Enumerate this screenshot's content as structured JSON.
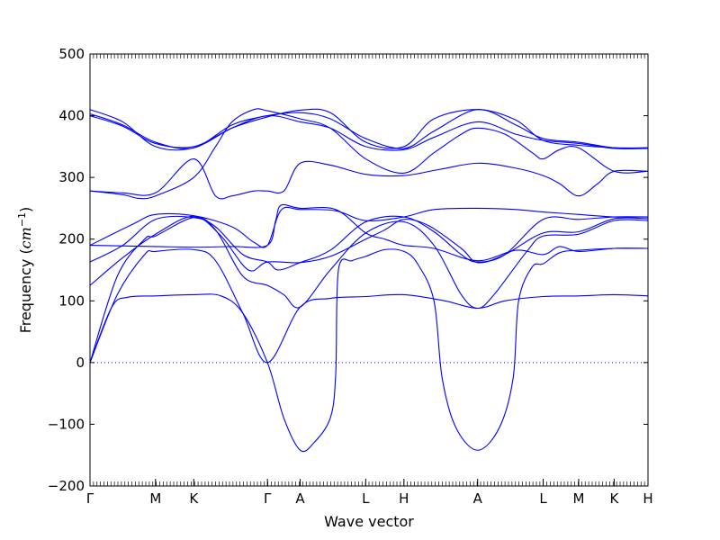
{
  "chart_data": {
    "type": "line",
    "title": "",
    "xlabel": "Wave vector",
    "ylabel_prefix": "Frequency (",
    "ylabel_unit": "cm",
    "ylabel_exp": "−1",
    "ylabel_suffix": ")",
    "ylim": [
      -200,
      500
    ],
    "xlim": [
      0,
      10.22
    ],
    "yticks": [
      -200,
      -100,
      0,
      100,
      200,
      300,
      400,
      500
    ],
    "ytick_labels": [
      "−200",
      "−100",
      "0",
      "100",
      "200",
      "300",
      "400",
      "500"
    ],
    "high_symmetry_points": [
      {
        "label": "Γ",
        "x": 0.0
      },
      {
        "label": "M",
        "x": 1.2
      },
      {
        "label": "K",
        "x": 1.9
      },
      {
        "label": "Γ",
        "x": 3.25
      },
      {
        "label": "A",
        "x": 3.85
      },
      {
        "label": "L",
        "x": 5.05
      },
      {
        "label": "H",
        "x": 5.75
      },
      {
        "label": "A",
        "x": 7.1
      },
      {
        "label": "L",
        "x": 8.3
      },
      {
        "label": "M",
        "x": 8.95
      },
      {
        "label": "K",
        "x": 9.6
      },
      {
        "label": "H",
        "x": 10.22
      }
    ],
    "zero_line": {
      "y": 0,
      "style": "dotted"
    },
    "line_color": "#0000ff",
    "series": [
      {
        "name": "band 1",
        "points": [
          [
            0,
            0
          ],
          [
            0.4,
            90
          ],
          [
            0.7,
            106
          ],
          [
            1.2,
            108
          ],
          [
            1.9,
            110
          ],
          [
            2.4,
            108
          ],
          [
            2.8,
            80
          ],
          [
            3.25,
            0
          ],
          [
            3.55,
            -90
          ],
          [
            3.85,
            -142
          ],
          [
            4.1,
            -130
          ],
          [
            4.4,
            -90
          ],
          [
            4.5,
            -20
          ],
          [
            4.55,
            150
          ],
          [
            4.8,
            165
          ],
          [
            5.05,
            172
          ],
          [
            5.4,
            183
          ],
          [
            5.75,
            180
          ],
          [
            6,
            160
          ],
          [
            6.3,
            100
          ],
          [
            6.45,
            -25
          ],
          [
            6.7,
            -105
          ],
          [
            7.1,
            -142
          ],
          [
            7.5,
            -105
          ],
          [
            7.75,
            -25
          ],
          [
            7.85,
            100
          ],
          [
            8.1,
            155
          ],
          [
            8.3,
            160
          ],
          [
            8.6,
            178
          ],
          [
            8.95,
            182
          ],
          [
            9.6,
            185
          ],
          [
            10.22,
            185
          ]
        ]
      },
      {
        "name": "band 2",
        "points": [
          [
            0,
            0
          ],
          [
            0.5,
            110
          ],
          [
            1.0,
            175
          ],
          [
            1.2,
            180
          ],
          [
            1.9,
            183
          ],
          [
            2.3,
            165
          ],
          [
            2.8,
            80
          ],
          [
            3.25,
            0
          ],
          [
            3.85,
            90
          ],
          [
            4.4,
            104
          ],
          [
            5.05,
            107
          ],
          [
            5.75,
            110
          ],
          [
            6.5,
            100
          ],
          [
            7.1,
            88
          ],
          [
            7.6,
            100
          ],
          [
            8.3,
            107
          ],
          [
            8.95,
            108
          ],
          [
            9.6,
            110
          ],
          [
            10.22,
            108
          ]
        ]
      },
      {
        "name": "band 3",
        "points": [
          [
            0,
            0
          ],
          [
            0.5,
            140
          ],
          [
            1.0,
            200
          ],
          [
            1.2,
            205
          ],
          [
            1.9,
            235
          ],
          [
            2.3,
            215
          ],
          [
            2.8,
            140
          ],
          [
            3.25,
            125
          ],
          [
            3.55,
            110
          ],
          [
            3.85,
            90
          ],
          [
            4.4,
            150
          ],
          [
            5.05,
            210
          ],
          [
            5.75,
            228
          ],
          [
            6.3,
            190
          ],
          [
            6.8,
            110
          ],
          [
            7.1,
            88
          ],
          [
            7.4,
            110
          ],
          [
            8.0,
            180
          ],
          [
            8.3,
            205
          ],
          [
            8.95,
            208
          ],
          [
            9.6,
            230
          ],
          [
            10.22,
            230
          ]
        ]
      },
      {
        "name": "band 4",
        "points": [
          [
            0,
            125
          ],
          [
            0.6,
            170
          ],
          [
            1.2,
            208
          ],
          [
            1.9,
            237
          ],
          [
            2.4,
            205
          ],
          [
            2.9,
            150
          ],
          [
            3.25,
            163
          ],
          [
            3.85,
            162
          ],
          [
            4.4,
            172
          ],
          [
            5.05,
            200
          ],
          [
            5.4,
            215
          ],
          [
            5.75,
            232
          ],
          [
            6.2,
            222
          ],
          [
            6.8,
            185
          ],
          [
            7.1,
            162
          ],
          [
            7.6,
            175
          ],
          [
            8.3,
            210
          ],
          [
            8.95,
            212
          ],
          [
            9.6,
            233
          ],
          [
            10.22,
            233
          ]
        ]
      },
      {
        "name": "band 5",
        "points": [
          [
            0,
            163
          ],
          [
            0.6,
            190
          ],
          [
            1.2,
            232
          ],
          [
            1.9,
            235
          ],
          [
            2.3,
            220
          ],
          [
            2.8,
            175
          ],
          [
            3.25,
            163
          ],
          [
            3.45,
            150
          ],
          [
            3.85,
            162
          ],
          [
            4.4,
            182
          ],
          [
            5.05,
            228
          ],
          [
            5.75,
            236
          ],
          [
            6.3,
            212
          ],
          [
            6.8,
            175
          ],
          [
            7.1,
            163
          ],
          [
            7.6,
            175
          ],
          [
            8.3,
            232
          ],
          [
            8.95,
            232
          ],
          [
            9.6,
            236
          ],
          [
            10.22,
            236
          ]
        ]
      },
      {
        "name": "band 6",
        "points": [
          [
            0,
            190
          ],
          [
            0.8,
            225
          ],
          [
            1.2,
            240
          ],
          [
            1.9,
            238
          ],
          [
            2.6,
            220
          ],
          [
            3.0,
            195
          ],
          [
            3.25,
            190
          ],
          [
            3.5,
            247
          ],
          [
            3.85,
            248
          ],
          [
            4.5,
            246
          ],
          [
            5.05,
            230
          ],
          [
            5.75,
            236
          ],
          [
            6.3,
            248
          ],
          [
            7.1,
            250
          ],
          [
            7.8,
            248
          ],
          [
            8.3,
            244
          ],
          [
            8.95,
            240
          ],
          [
            9.6,
            236
          ],
          [
            10.22,
            236
          ]
        ]
      },
      {
        "name": "band 7",
        "points": [
          [
            0,
            190
          ],
          [
            1.2,
            188
          ],
          [
            1.9,
            187
          ],
          [
            2.6,
            188
          ],
          [
            3.25,
            190
          ],
          [
            3.4,
            230
          ],
          [
            3.5,
            255
          ],
          [
            3.85,
            250
          ],
          [
            4.5,
            248
          ],
          [
            5.05,
            210
          ],
          [
            5.4,
            200
          ],
          [
            5.75,
            190
          ],
          [
            6.3,
            185
          ],
          [
            7.1,
            165
          ],
          [
            7.8,
            182
          ],
          [
            8.3,
            175
          ],
          [
            8.6,
            188
          ],
          [
            8.95,
            180
          ],
          [
            9.6,
            185
          ],
          [
            10.22,
            185
          ]
        ]
      },
      {
        "name": "band 8",
        "points": [
          [
            0,
            278
          ],
          [
            0.6,
            272
          ],
          [
            0.9,
            266
          ],
          [
            1.2,
            270
          ],
          [
            1.9,
            300
          ],
          [
            2.3,
            350
          ],
          [
            2.6,
            390
          ],
          [
            3.0,
            410
          ],
          [
            3.25,
            408
          ],
          [
            3.85,
            395
          ],
          [
            4.4,
            380
          ],
          [
            5.05,
            330
          ],
          [
            5.75,
            307
          ],
          [
            6.3,
            340
          ],
          [
            6.8,
            370
          ],
          [
            7.1,
            380
          ],
          [
            7.6,
            370
          ],
          [
            8.1,
            340
          ],
          [
            8.3,
            330
          ],
          [
            8.6,
            345
          ],
          [
            8.95,
            348
          ],
          [
            9.6,
            310
          ],
          [
            10.22,
            310
          ]
        ]
      },
      {
        "name": "band 9",
        "points": [
          [
            0,
            278
          ],
          [
            0.6,
            275
          ],
          [
            1.2,
            275
          ],
          [
            1.9,
            330
          ],
          [
            2.3,
            270
          ],
          [
            2.6,
            270
          ],
          [
            3.0,
            278
          ],
          [
            3.25,
            278
          ],
          [
            3.55,
            278
          ],
          [
            3.85,
            323
          ],
          [
            4.4,
            320
          ],
          [
            5.05,
            305
          ],
          [
            5.75,
            303
          ],
          [
            6.4,
            313
          ],
          [
            7.1,
            323
          ],
          [
            7.8,
            315
          ],
          [
            8.3,
            303
          ],
          [
            8.6,
            290
          ],
          [
            8.95,
            270
          ],
          [
            9.3,
            290
          ],
          [
            9.6,
            310
          ],
          [
            10.22,
            310
          ]
        ]
      },
      {
        "name": "band 10",
        "points": [
          [
            0,
            410
          ],
          [
            0.6,
            390
          ],
          [
            1.2,
            350
          ],
          [
            1.9,
            348
          ],
          [
            2.6,
            380
          ],
          [
            3.25,
            400
          ],
          [
            3.85,
            390
          ],
          [
            4.4,
            380
          ],
          [
            5.05,
            350
          ],
          [
            5.75,
            345
          ],
          [
            6.3,
            365
          ],
          [
            7.1,
            390
          ],
          [
            7.8,
            370
          ],
          [
            8.3,
            360
          ],
          [
            8.95,
            355
          ],
          [
            9.6,
            347
          ],
          [
            10.22,
            347
          ]
        ]
      },
      {
        "name": "band 11",
        "points": [
          [
            0,
            403
          ],
          [
            0.6,
            385
          ],
          [
            1.2,
            357
          ],
          [
            1.9,
            348
          ],
          [
            2.6,
            385
          ],
          [
            3.25,
            400
          ],
          [
            3.85,
            405
          ],
          [
            4.4,
            395
          ],
          [
            5.05,
            363
          ],
          [
            5.75,
            347
          ],
          [
            6.3,
            375
          ],
          [
            7.1,
            410
          ],
          [
            7.8,
            385
          ],
          [
            8.3,
            363
          ],
          [
            8.95,
            357
          ],
          [
            9.6,
            348
          ],
          [
            10.22,
            348
          ]
        ]
      },
      {
        "name": "band 12",
        "points": [
          [
            0,
            400
          ],
          [
            0.6,
            383
          ],
          [
            1.2,
            355
          ],
          [
            1.9,
            350
          ],
          [
            2.6,
            380
          ],
          [
            3.25,
            398
          ],
          [
            3.85,
            409
          ],
          [
            4.4,
            405
          ],
          [
            5.05,
            357
          ],
          [
            5.75,
            350
          ],
          [
            6.3,
            395
          ],
          [
            7.1,
            410
          ],
          [
            7.8,
            393
          ],
          [
            8.3,
            360
          ],
          [
            8.95,
            352
          ],
          [
            9.6,
            348
          ],
          [
            10.22,
            348
          ]
        ]
      }
    ]
  }
}
